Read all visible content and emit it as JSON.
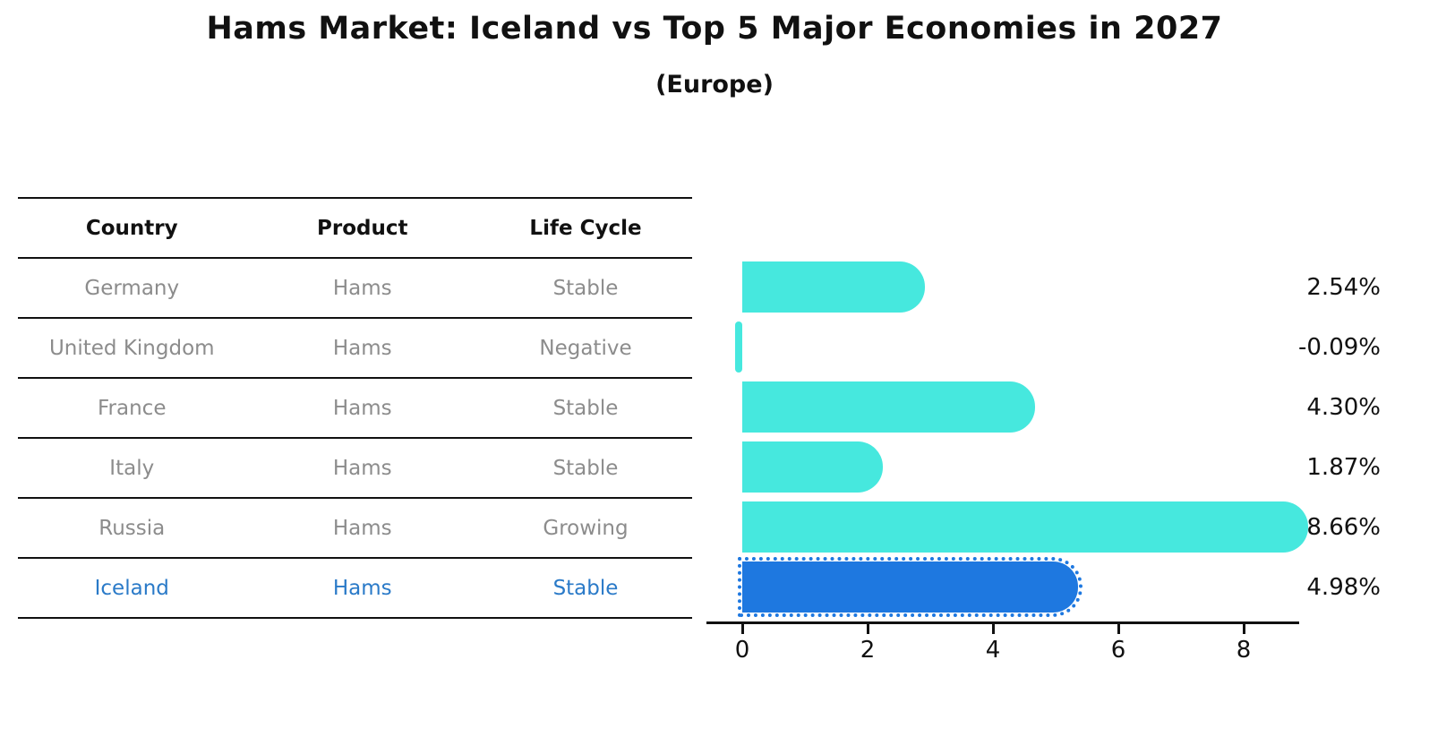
{
  "header": {
    "title": "Hams Market: Iceland vs Top 5 Major Economies in 2027",
    "subtitle": "(Europe)"
  },
  "table": {
    "columns": [
      "Country",
      "Product",
      "Life Cycle"
    ],
    "rows": [
      {
        "country": "Germany",
        "product": "Hams",
        "life_cycle": "Stable",
        "highlight": false
      },
      {
        "country": "United Kingdom",
        "product": "Hams",
        "life_cycle": "Negative",
        "highlight": false
      },
      {
        "country": "France",
        "product": "Hams",
        "life_cycle": "Stable",
        "highlight": false
      },
      {
        "country": "Italy",
        "product": "Hams",
        "life_cycle": "Stable",
        "highlight": false
      },
      {
        "country": "Russia",
        "product": "Hams",
        "life_cycle": "Growing",
        "highlight": false
      },
      {
        "country": "Iceland",
        "product": "Hams",
        "life_cycle": "Stable",
        "highlight": true
      }
    ]
  },
  "chart_data": {
    "type": "bar",
    "orientation": "horizontal",
    "title": "Hams Market: Iceland vs Top 5 Major Economies in 2027",
    "subtitle": "(Europe)",
    "categories": [
      "Germany",
      "United Kingdom",
      "France",
      "Italy",
      "Russia",
      "Iceland"
    ],
    "values": [
      2.54,
      -0.09,
      4.3,
      1.87,
      8.66,
      4.98
    ],
    "value_labels": [
      "2.54%",
      "-0.09%",
      "4.30%",
      "1.87%",
      "8.66%",
      "4.98%"
    ],
    "highlight_category": "Iceland",
    "xticks": [
      0,
      2,
      4,
      6,
      8
    ],
    "xlim": [
      -0.6,
      9.2
    ],
    "xlabel": "",
    "ylabel": "",
    "grid": false,
    "legend": "none"
  },
  "colors": {
    "bar_default": "#46E8DE",
    "bar_highlight": "#1E78E0",
    "highlight_text": "#2A7AC8",
    "table_text": "#8C8C8C",
    "axis": "#111111"
  }
}
